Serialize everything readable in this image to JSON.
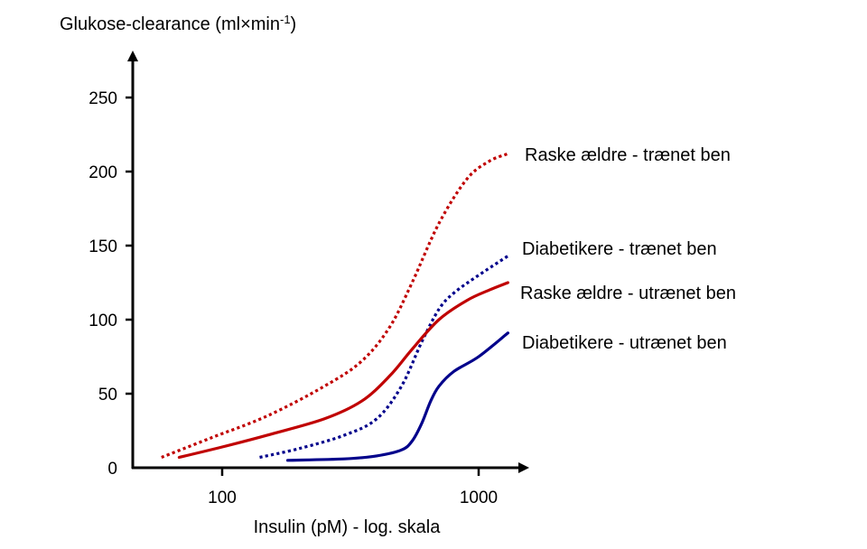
{
  "chart_data": {
    "type": "line",
    "ylabel": "Glukose-clearance (ml×min",
    "ylabel_sup": "-1",
    "ylabel_close": ")",
    "xlabel": "Insulin (pM) - log. skala",
    "x_scale": "log",
    "xlim": [
      30,
      1500
    ],
    "ylim": [
      0,
      270
    ],
    "y_ticks": [
      0,
      50,
      100,
      150,
      200,
      250
    ],
    "x_ticks": [
      100,
      1000
    ],
    "grid": false,
    "legend": "inline-right",
    "series": [
      {
        "name": "Raske ældre - trænet ben",
        "color": "#c00000",
        "style": "dotted",
        "x": [
          58,
          90,
          150,
          250,
          350,
          450,
          550,
          700,
          900,
          1100,
          1300
        ],
        "y": [
          7,
          20,
          35,
          55,
          72,
          95,
          125,
          165,
          195,
          207,
          212
        ]
      },
      {
        "name": "Diabetikere - trænet ben",
        "color": "#00008b",
        "style": "dotted",
        "x": [
          140,
          200,
          300,
          400,
          500,
          600,
          700,
          800,
          1000,
          1300
        ],
        "y": [
          7,
          13,
          22,
          33,
          55,
          85,
          107,
          118,
          130,
          143
        ]
      },
      {
        "name": "Raske ældre - utrænet ben",
        "color": "#c00000",
        "style": "solid",
        "x": [
          68,
          100,
          150,
          250,
          350,
          450,
          550,
          700,
          900,
          1100,
          1300
        ],
        "y": [
          7,
          14,
          22,
          33,
          45,
          62,
          80,
          100,
          113,
          120,
          125
        ]
      },
      {
        "name": "Diabetikere - utrænet ben",
        "color": "#00008b",
        "style": "solid",
        "x": [
          180,
          300,
          400,
          500,
          550,
          600,
          650,
          700,
          800,
          1000,
          1300
        ],
        "y": [
          5,
          6,
          8,
          12,
          18,
          30,
          45,
          55,
          65,
          75,
          91
        ]
      }
    ]
  }
}
